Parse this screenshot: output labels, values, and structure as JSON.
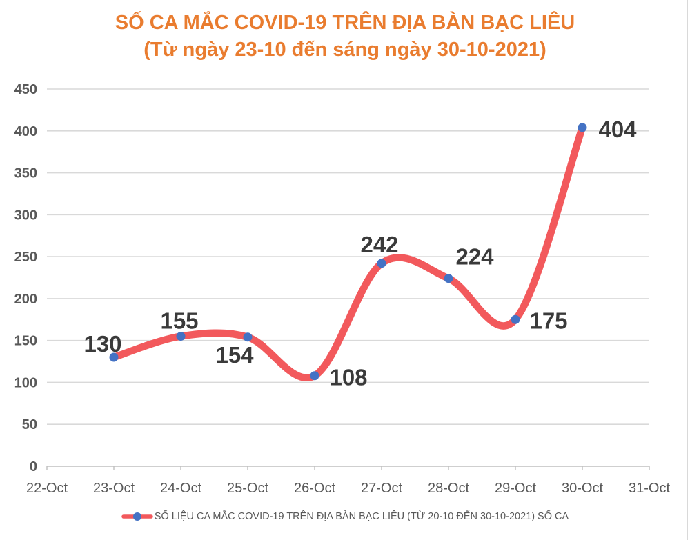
{
  "title": {
    "line1": "SỐ CA MẮC COVID-19 TRÊN ĐỊA BÀN BẠC LIÊU",
    "line2": "(Từ ngày 23-10 đến sáng ngày 30-10-2021)"
  },
  "legend": {
    "label": "SỐ LIỆU CA MẮC COVID-19 TRÊN ĐỊA BÀN BẠC LIÊU (TỪ 20-10 ĐẾN 30-10-2021) SỐ CA"
  },
  "colors": {
    "title": "#e97c2f",
    "line": "#f2595c",
    "marker": "#4472c4",
    "grid": "#d9d9d9",
    "axis_line": "#bfbfbf",
    "axis_text": "#595959",
    "data_label": "#3a3a3a"
  },
  "chart_data": {
    "type": "line",
    "smooth": true,
    "title": "SỐ CA MẮC COVID-19 TRÊN ĐỊA BÀN BẠC LIÊU (Từ ngày 23-10 đến sáng ngày 30-10-2021)",
    "x_axis_ticks": [
      "22-Oct",
      "23-Oct",
      "24-Oct",
      "25-Oct",
      "26-Oct",
      "27-Oct",
      "28-Oct",
      "29-Oct",
      "30-Oct",
      "31-Oct"
    ],
    "series": [
      {
        "name": "SỐ LIỆU CA MẮC COVID-19 TRÊN ĐỊA BÀN BẠC LIÊU (TỪ 20-10 ĐẾN 30-10-2021) SỐ CA",
        "categories": [
          "23-Oct",
          "24-Oct",
          "25-Oct",
          "26-Oct",
          "27-Oct",
          "28-Oct",
          "29-Oct",
          "30-Oct"
        ],
        "values": [
          130,
          155,
          154,
          108,
          242,
          224,
          175,
          404
        ]
      }
    ],
    "ylim": [
      0,
      450
    ],
    "ytick_step": 50,
    "grid": true,
    "data_labels": true,
    "legend_position": "bottom"
  }
}
